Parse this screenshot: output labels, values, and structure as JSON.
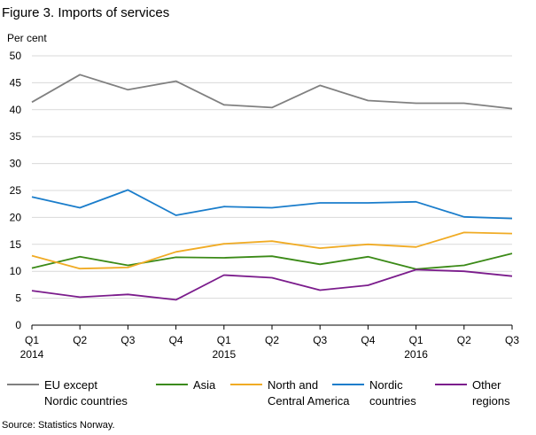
{
  "figure_title": "Figure 3. Imports of services",
  "source": "Source: Statistics Norway.",
  "chart_data": {
    "type": "line",
    "title": "Figure 3. Imports of services",
    "ylabel": "Per cent",
    "xlabel": "",
    "ylim": [
      0,
      50
    ],
    "yticks": [
      0,
      5,
      10,
      15,
      20,
      25,
      30,
      35,
      40,
      45,
      50
    ],
    "grid": "horizontal",
    "legend_position": "bottom",
    "categories": [
      "Q1",
      "Q2",
      "Q3",
      "Q4",
      "Q1",
      "Q2",
      "Q3",
      "Q4",
      "Q1",
      "Q2",
      "Q3"
    ],
    "year_labels": [
      {
        "index": 0,
        "text": "2014"
      },
      {
        "index": 4,
        "text": "2015"
      },
      {
        "index": 8,
        "text": "2016"
      }
    ],
    "series": [
      {
        "name": "EU except Nordic countries",
        "legend_lines": [
          "EU except",
          "Nordic countries"
        ],
        "color": "#808080",
        "values": [
          41.4,
          46.5,
          43.7,
          45.3,
          40.9,
          40.4,
          44.5,
          41.7,
          41.2,
          41.2,
          40.2
        ]
      },
      {
        "name": "Asia",
        "legend_lines": [
          "Asia"
        ],
        "color": "#3b8a17",
        "values": [
          10.6,
          12.7,
          11.1,
          12.6,
          12.5,
          12.8,
          11.3,
          12.7,
          10.4,
          11.1,
          13.3
        ]
      },
      {
        "name": "North and Central America",
        "legend_lines": [
          "North and",
          "Central America"
        ],
        "color": "#f0ab24",
        "values": [
          12.9,
          10.5,
          10.7,
          13.6,
          15.1,
          15.6,
          14.3,
          15.0,
          14.5,
          17.2,
          17.0
        ]
      },
      {
        "name": "Nordic countries",
        "legend_lines": [
          "Nordic",
          "countries"
        ],
        "color": "#1a7dcb",
        "values": [
          23.8,
          21.8,
          25.1,
          20.4,
          22.0,
          21.8,
          22.7,
          22.7,
          22.9,
          20.1,
          19.8
        ]
      },
      {
        "name": "Other regions",
        "legend_lines": [
          "Other",
          "regions"
        ],
        "color": "#7b1c8c",
        "values": [
          6.4,
          5.2,
          5.7,
          4.7,
          9.3,
          8.8,
          6.5,
          7.4,
          10.3,
          10.0,
          9.1
        ]
      }
    ]
  }
}
